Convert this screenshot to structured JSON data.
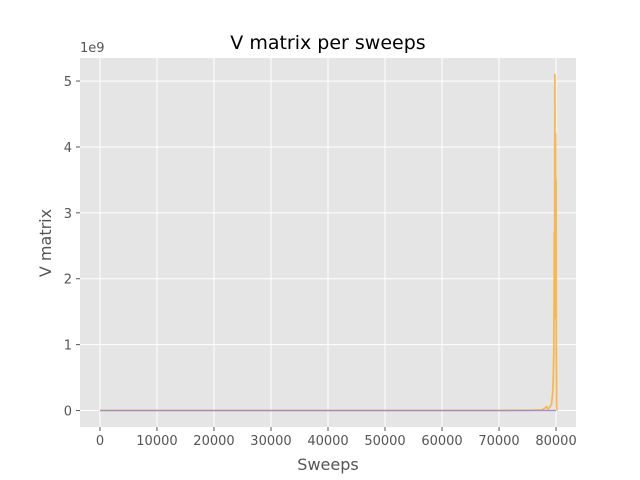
{
  "chart_data": {
    "type": "line",
    "title": "V matrix per sweeps",
    "xlabel": "Sweeps",
    "ylabel": "V matrix",
    "y_offset_label": "1e9",
    "xlim": [
      -3500,
      83500
    ],
    "ylim": [
      -0.25,
      5.35
    ],
    "x_ticks": [
      0,
      10000,
      20000,
      30000,
      40000,
      50000,
      60000,
      70000,
      80000
    ],
    "x_tick_labels": [
      "0",
      "10000",
      "20000",
      "30000",
      "40000",
      "50000",
      "60000",
      "70000",
      "80000"
    ],
    "y_ticks": [
      0,
      1,
      2,
      3,
      4,
      5
    ],
    "y_tick_labels": [
      "0",
      "1",
      "2",
      "3",
      "4",
      "5"
    ],
    "grid": true,
    "style": "ggplot",
    "series": [
      {
        "color": "#f7b84f",
        "x": [
          0,
          10000,
          20000,
          30000,
          40000,
          50000,
          60000,
          70000,
          76000,
          77500,
          78000,
          78300,
          78600,
          78900,
          79200,
          79400,
          79500,
          79600,
          79650,
          79700,
          79750,
          79800,
          79850,
          79900,
          79950,
          80000,
          80050,
          80100,
          80150,
          80200
        ],
        "y": [
          0,
          0,
          0,
          0,
          0,
          0,
          0,
          0,
          0.005,
          0.01,
          0.03,
          0.06,
          0.02,
          0.05,
          0.1,
          0.25,
          0.45,
          0.85,
          1.6,
          2.7,
          1.4,
          5.1,
          1.5,
          4.2,
          2.5,
          3.5,
          0.8,
          0.05,
          0.02,
          0
        ]
      },
      {
        "color": "#988ed5",
        "x": [
          0,
          80000
        ],
        "y": [
          0,
          0
        ]
      }
    ]
  }
}
